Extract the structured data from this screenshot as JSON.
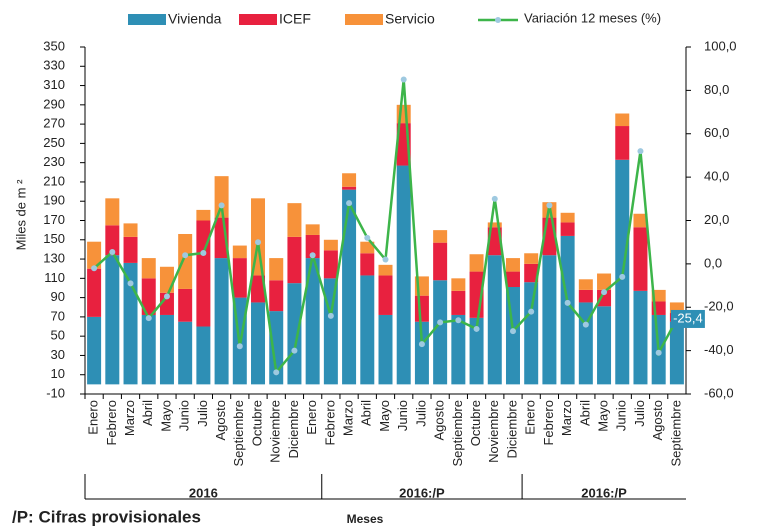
{
  "chart_data": {
    "type": "stacked-bar-line",
    "ylabel": "Miles de m ²",
    "xlabel": "Meses",
    "footnote": "/P: Cifras provisionales",
    "groups": [
      {
        "name": "2016",
        "categories": [
          "Enero",
          "Febrero",
          "Marzo",
          "Abril",
          "Mayo",
          "Junio",
          "Julio",
          "Agosto",
          "Septiembre",
          "Octubre",
          "Noviembre",
          "Diciembre",
          "Enero"
        ]
      },
      {
        "name": "2016:/P",
        "categories": [
          "Febrero",
          "Marzo",
          "Abril",
          "Mayo",
          "Junio",
          "Julio",
          "Agosto",
          "Septiembre",
          "Octubre",
          "Noviembre",
          "Diciembre"
        ]
      },
      {
        "name": "2016:/P",
        "categories": [
          "Enero",
          "Febrero",
          "Marzo",
          "Abril",
          "Mayo",
          "Junio",
          "Julio",
          "Agosto",
          "Septiembre"
        ]
      }
    ],
    "series": [
      {
        "name": "Vivienda",
        "color": "#2e8fb5",
        "values": [
          70,
          134,
          126,
          72,
          72,
          65,
          60,
          131,
          90,
          85,
          76,
          105,
          131,
          110,
          202,
          113,
          72,
          227,
          65,
          108,
          72,
          69,
          134,
          101,
          106,
          134,
          154,
          85,
          81,
          233,
          97,
          72,
          65
        ]
      },
      {
        "name": "ICEF",
        "color": "#e8213f",
        "values": [
          50,
          31,
          27,
          38,
          23,
          34,
          110,
          42,
          41,
          28,
          32,
          48,
          24,
          29,
          3,
          23,
          41,
          44,
          27,
          39,
          25,
          48,
          29,
          16,
          19,
          39,
          14,
          13,
          17,
          35,
          66,
          14,
          9
        ]
      },
      {
        "name": "Servicio",
        "color": "#f7923a",
        "values": [
          28,
          28,
          14,
          21,
          27,
          57,
          11,
          43,
          13,
          80,
          23,
          35,
          11,
          11,
          14,
          12,
          11,
          19,
          20,
          13,
          13,
          18,
          5,
          14,
          11,
          16,
          10,
          11,
          17,
          13,
          14,
          12,
          11
        ]
      },
      {
        "name": "Variación 12 meses (%)",
        "color": "#3db54a",
        "marker_color": "#9ec9e0",
        "axis": "y2",
        "values": [
          -2,
          5.5,
          -9,
          -25,
          -15,
          4,
          5,
          27,
          -38,
          10,
          -50,
          -40,
          4,
          -24,
          28,
          12,
          2,
          85,
          -37,
          -27,
          -26,
          -30,
          30,
          -31,
          -22,
          27,
          -18,
          -28,
          -13,
          -6,
          52,
          -41,
          -25.4
        ],
        "value_labels": [
          null,
          null,
          null,
          null,
          null,
          null,
          null,
          null,
          null,
          null,
          null,
          null,
          null,
          null,
          null,
          null,
          null,
          null,
          null,
          null,
          null,
          null,
          null,
          null,
          null,
          null,
          null,
          null,
          null,
          null,
          null,
          null,
          "-25,4"
        ]
      }
    ],
    "ylim": [
      -10,
      350
    ],
    "yticks": [
      -10,
      10,
      30,
      50,
      70,
      90,
      110,
      130,
      150,
      170,
      190,
      210,
      230,
      250,
      270,
      290,
      310,
      330,
      350
    ],
    "y2lim": [
      -60,
      100
    ],
    "y2ticks": [
      {
        "value": -60,
        "label": "-60,0"
      },
      {
        "value": -40,
        "label": "-40,0"
      },
      {
        "value": -20,
        "label": "-20,0"
      },
      {
        "value": 0,
        "label": "0,0"
      },
      {
        "value": 20,
        "label": "20,0"
      },
      {
        "value": 40,
        "label": "40,0"
      },
      {
        "value": 60,
        "label": "60,0"
      },
      {
        "value": 80,
        "label": "80,0"
      },
      {
        "value": 100,
        "label": "100,0"
      }
    ]
  }
}
